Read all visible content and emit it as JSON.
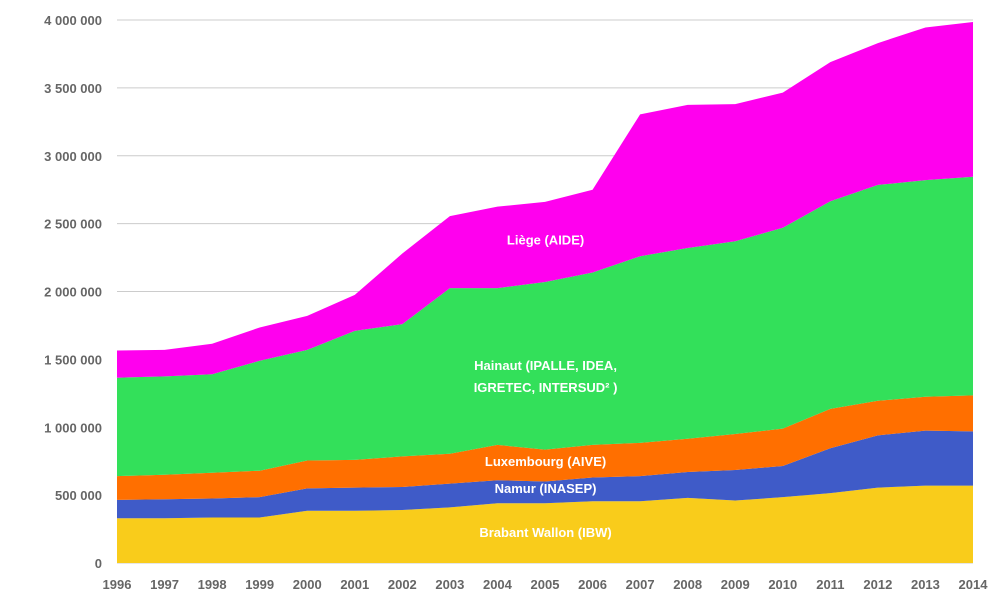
{
  "chart_data": {
    "type": "area",
    "stacked": true,
    "grid": "horizontal",
    "x": [
      "1996",
      "1997",
      "1998",
      "1999",
      "2000",
      "2001",
      "2002",
      "2003",
      "2004",
      "2005",
      "2006",
      "2007",
      "2008",
      "2009",
      "2010",
      "2011",
      "2012",
      "2013",
      "2014"
    ],
    "ylim": [
      0,
      4000000
    ],
    "yticks": [
      0,
      500000,
      1000000,
      1500000,
      2000000,
      2500000,
      3000000,
      3500000,
      4000000
    ],
    "ytick_labels": [
      "0",
      "500 000",
      "1 000 000",
      "1 500 000",
      "2 000 000",
      "2 500 000",
      "3 000 000",
      "3 500 000",
      "4 000 000"
    ],
    "series": [
      {
        "name": "Brabant Wallon (IBW)",
        "color": "#f9cc1b",
        "values": [
          330000,
          330000,
          335000,
          335000,
          385000,
          385000,
          390000,
          410000,
          440000,
          440000,
          455000,
          455000,
          480000,
          460000,
          485000,
          515000,
          555000,
          570000,
          570000
        ]
      },
      {
        "name": "Namur (INASEP)",
        "color": "#3f5bc8",
        "values": [
          135000,
          140000,
          140000,
          150000,
          165000,
          170000,
          170000,
          175000,
          170000,
          160000,
          175000,
          185000,
          190000,
          225000,
          230000,
          330000,
          385000,
          405000,
          400000
        ]
      },
      {
        "name": "Luxembourg (AIVE)",
        "color": "#ff6f00",
        "values": [
          175000,
          180000,
          190000,
          195000,
          205000,
          205000,
          225000,
          220000,
          260000,
          235000,
          240000,
          245000,
          245000,
          265000,
          275000,
          290000,
          255000,
          250000,
          265000
        ]
      },
      {
        "name": "Hainaut (IPALLE, IDEA, IGRETEC, INTERSUD² )",
        "color": "#33e05a",
        "values": [
          725000,
          725000,
          725000,
          810000,
          815000,
          950000,
          975000,
          1220000,
          1155000,
          1235000,
          1270000,
          1375000,
          1405000,
          1420000,
          1480000,
          1530000,
          1590000,
          1595000,
          1610000
        ]
      },
      {
        "name": "Liège (AIDE)",
        "color": "#ff00ee",
        "values": [
          200000,
          195000,
          225000,
          245000,
          250000,
          265000,
          520000,
          530000,
          600000,
          590000,
          610000,
          1045000,
          1055000,
          1010000,
          995000,
          1025000,
          1045000,
          1125000,
          1140000
        ]
      }
    ],
    "series_labels": [
      {
        "lines": [
          "Brabant Wallon (IBW)"
        ]
      },
      {
        "lines": [
          "Namur (INASEP)"
        ]
      },
      {
        "lines": [
          "Luxembourg (AIVE)"
        ]
      },
      {
        "lines": [
          "Hainaut (IPALLE, IDEA,",
          "IGRETEC, INTERSUD² )"
        ]
      },
      {
        "lines": [
          "Liège (AIDE)"
        ]
      }
    ],
    "grid_color": "#cccccc",
    "tick_color": "#666666"
  }
}
